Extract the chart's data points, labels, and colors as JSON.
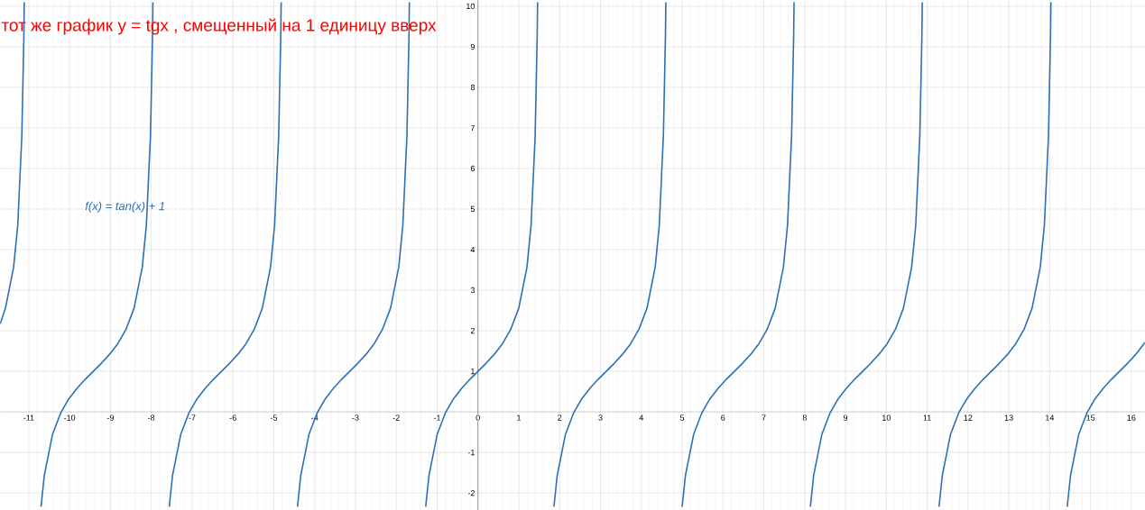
{
  "chart_data": {
    "type": "line",
    "title": "тот же график   y = tgx , смещенный на 1 единицу вверх",
    "annotations": [
      "f(x) = tan(x) + 1"
    ],
    "xlim": [
      -11.7,
      16.33
    ],
    "ylim": [
      -2.42,
      10.15
    ],
    "xticks": [
      -11,
      -10,
      -9,
      -8,
      -7,
      -6,
      -5,
      -4,
      -3,
      -2,
      -1,
      0,
      1,
      2,
      3,
      4,
      5,
      6,
      7,
      8,
      9,
      10,
      11,
      12,
      13,
      14,
      15,
      16
    ],
    "yticks": [
      -2,
      -1,
      1,
      2,
      3,
      4,
      5,
      6,
      7,
      8,
      9,
      10
    ],
    "grid": true,
    "marker": "none",
    "series": [
      {
        "color": "#2d70b3",
        "x": [
          -11.7,
          -11.57,
          -11.37,
          -11.27,
          -11.17,
          -11.12,
          -11.11
        ],
        "values": [
          2.17,
          2.56,
          3.57,
          4.6,
          6.8,
          9.24,
          10.1
        ]
      },
      {
        "color": "#2d70b3",
        "x": [
          -10.7,
          -10.62,
          -10.42,
          -10.22,
          -10.02,
          -9.82,
          -9.62,
          -9.42,
          -9.22,
          -9.02,
          -8.82,
          -8.62,
          -8.42,
          -8.22,
          -8.12,
          -8.02,
          -7.97,
          -7.96
        ],
        "values": [
          -2.34,
          -1.57,
          -0.56,
          -0.03,
          0.32,
          0.58,
          0.8,
          1,
          1.2,
          1.42,
          1.68,
          2.03,
          2.56,
          3.57,
          4.6,
          6.8,
          9.24,
          10.1
        ]
      },
      {
        "color": "#2d70b3",
        "x": [
          -7.56,
          -7.48,
          -7.28,
          -7.08,
          -6.88,
          -6.68,
          -6.48,
          -6.28,
          -6.08,
          -5.88,
          -5.68,
          -5.48,
          -5.28,
          -5.08,
          -4.98,
          -4.88,
          -4.83,
          -4.82
        ],
        "values": [
          -2.34,
          -1.57,
          -0.56,
          -0.03,
          0.32,
          0.58,
          0.8,
          1,
          1.2,
          1.42,
          1.68,
          2.03,
          2.56,
          3.57,
          4.6,
          6.8,
          9.24,
          10.1
        ]
      },
      {
        "color": "#2d70b3",
        "x": [
          -4.42,
          -4.34,
          -4.14,
          -3.94,
          -3.74,
          -3.54,
          -3.34,
          -3.14,
          -2.94,
          -2.74,
          -2.54,
          -2.34,
          -2.14,
          -1.94,
          -1.84,
          -1.74,
          -1.69,
          -1.68
        ],
        "values": [
          -2.34,
          -1.57,
          -0.56,
          -0.03,
          0.32,
          0.58,
          0.8,
          1,
          1.2,
          1.42,
          1.68,
          2.03,
          2.56,
          3.57,
          4.6,
          6.8,
          9.24,
          10.1
        ]
      },
      {
        "color": "#2d70b3",
        "x": [
          -1.28,
          -1.2,
          -1.0,
          -0.8,
          -0.6,
          -0.4,
          -0.2,
          0,
          0.2,
          0.4,
          0.6,
          0.8,
          1.0,
          1.2,
          1.3,
          1.4,
          1.45,
          1.46
        ],
        "values": [
          -2.34,
          -1.57,
          -0.56,
          -0.03,
          0.32,
          0.58,
          0.8,
          1,
          1.2,
          1.42,
          1.68,
          2.03,
          2.56,
          3.57,
          4.6,
          6.8,
          9.24,
          10.1
        ]
      },
      {
        "color": "#2d70b3",
        "x": [
          1.86,
          1.94,
          2.14,
          2.34,
          2.54,
          2.74,
          2.94,
          3.14,
          3.34,
          3.54,
          3.74,
          3.94,
          4.14,
          4.34,
          4.44,
          4.54,
          4.59,
          4.6
        ],
        "values": [
          -2.34,
          -1.57,
          -0.56,
          -0.03,
          0.32,
          0.58,
          0.8,
          1,
          1.2,
          1.42,
          1.68,
          2.03,
          2.56,
          3.57,
          4.6,
          6.8,
          9.24,
          10.1
        ]
      },
      {
        "color": "#2d70b3",
        "x": [
          5.0,
          5.08,
          5.28,
          5.48,
          5.68,
          5.88,
          6.08,
          6.28,
          6.48,
          6.68,
          6.88,
          7.08,
          7.28,
          7.48,
          7.58,
          7.68,
          7.73,
          7.74
        ],
        "values": [
          -2.34,
          -1.57,
          -0.56,
          -0.03,
          0.32,
          0.58,
          0.8,
          1,
          1.2,
          1.42,
          1.68,
          2.03,
          2.56,
          3.57,
          4.6,
          6.8,
          9.24,
          10.1
        ]
      },
      {
        "color": "#2d70b3",
        "x": [
          8.14,
          8.22,
          8.42,
          8.62,
          8.82,
          9.02,
          9.22,
          9.42,
          9.62,
          9.82,
          10.02,
          10.22,
          10.42,
          10.62,
          10.72,
          10.82,
          10.87,
          10.88
        ],
        "values": [
          -2.34,
          -1.57,
          -0.56,
          -0.03,
          0.32,
          0.58,
          0.8,
          1,
          1.2,
          1.42,
          1.68,
          2.03,
          2.56,
          3.57,
          4.6,
          6.8,
          9.24,
          10.1
        ]
      },
      {
        "color": "#2d70b3",
        "x": [
          11.29,
          11.37,
          11.57,
          11.77,
          11.97,
          12.17,
          12.37,
          12.57,
          12.77,
          12.97,
          13.17,
          13.37,
          13.57,
          13.77,
          13.87,
          13.97,
          14.02,
          14.03
        ],
        "values": [
          -2.34,
          -1.57,
          -0.56,
          -0.03,
          0.32,
          0.58,
          0.8,
          1,
          1.2,
          1.42,
          1.68,
          2.03,
          2.56,
          3.57,
          4.6,
          6.8,
          9.24,
          10.1
        ]
      },
      {
        "color": "#2d70b3",
        "x": [
          14.43,
          14.51,
          14.71,
          14.91,
          15.11,
          15.31,
          15.51,
          15.71,
          15.91,
          16.11,
          16.31,
          16.33
        ],
        "values": [
          -2.34,
          -1.57,
          -0.56,
          -0.03,
          0.32,
          0.58,
          0.8,
          1,
          1.2,
          1.42,
          1.68,
          1.72
        ]
      }
    ]
  }
}
